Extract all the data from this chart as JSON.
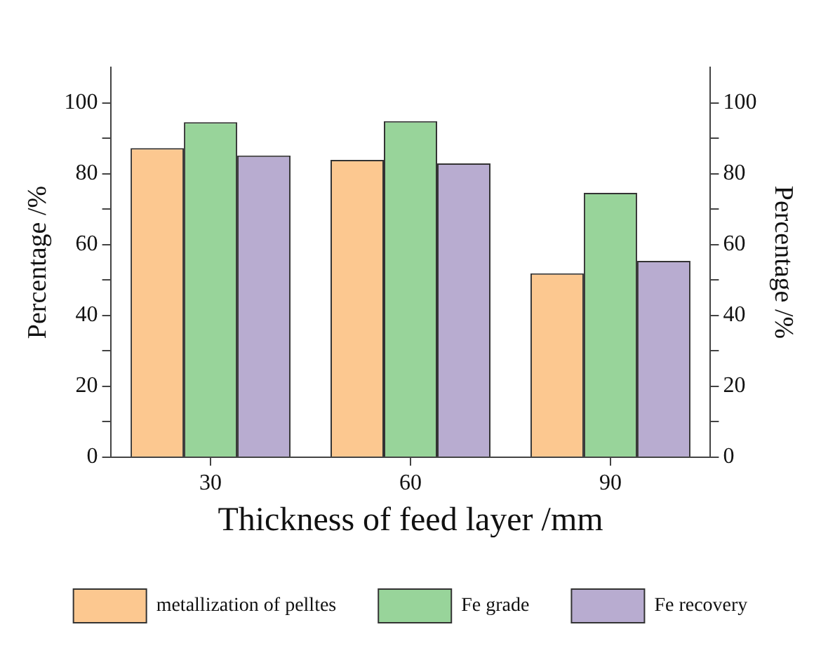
{
  "chart_data": {
    "type": "bar",
    "xlabel": "Thickness of feed layer /mm",
    "ylabel": "Percentage /%",
    "y2label": "Percentage /%",
    "categories": [
      "30",
      "60",
      "90"
    ],
    "series": [
      {
        "name": "metallization of pelltes",
        "color": "#fcc890",
        "values": [
          87.2,
          83.9,
          51.9
        ]
      },
      {
        "name": "Fe grade",
        "color": "#98d49a",
        "values": [
          94.5,
          94.8,
          74.6
        ]
      },
      {
        "name": "Fe recovery",
        "color": "#b8acd0",
        "values": [
          85.1,
          82.9,
          55.4
        ]
      }
    ],
    "ylim": [
      0,
      110
    ],
    "yticks": [
      0,
      {
        "value": 10,
        "label": null
      },
      20,
      {
        "value": 30,
        "label": null
      },
      40,
      {
        "value": 50,
        "label": null
      },
      60,
      {
        "value": 70,
        "label": null
      },
      80,
      {
        "value": 90,
        "label": null
      },
      100
    ],
    "y2lim": [
      0,
      110
    ],
    "y2ticks": [
      0,
      {
        "value": 10,
        "label": null
      },
      20,
      {
        "value": 30,
        "label": null
      },
      40,
      {
        "value": 50,
        "label": null
      },
      60,
      {
        "value": 70,
        "label": null
      },
      80,
      {
        "value": 90,
        "label": null
      },
      100
    ],
    "grid": false,
    "legend": "bottom"
  }
}
